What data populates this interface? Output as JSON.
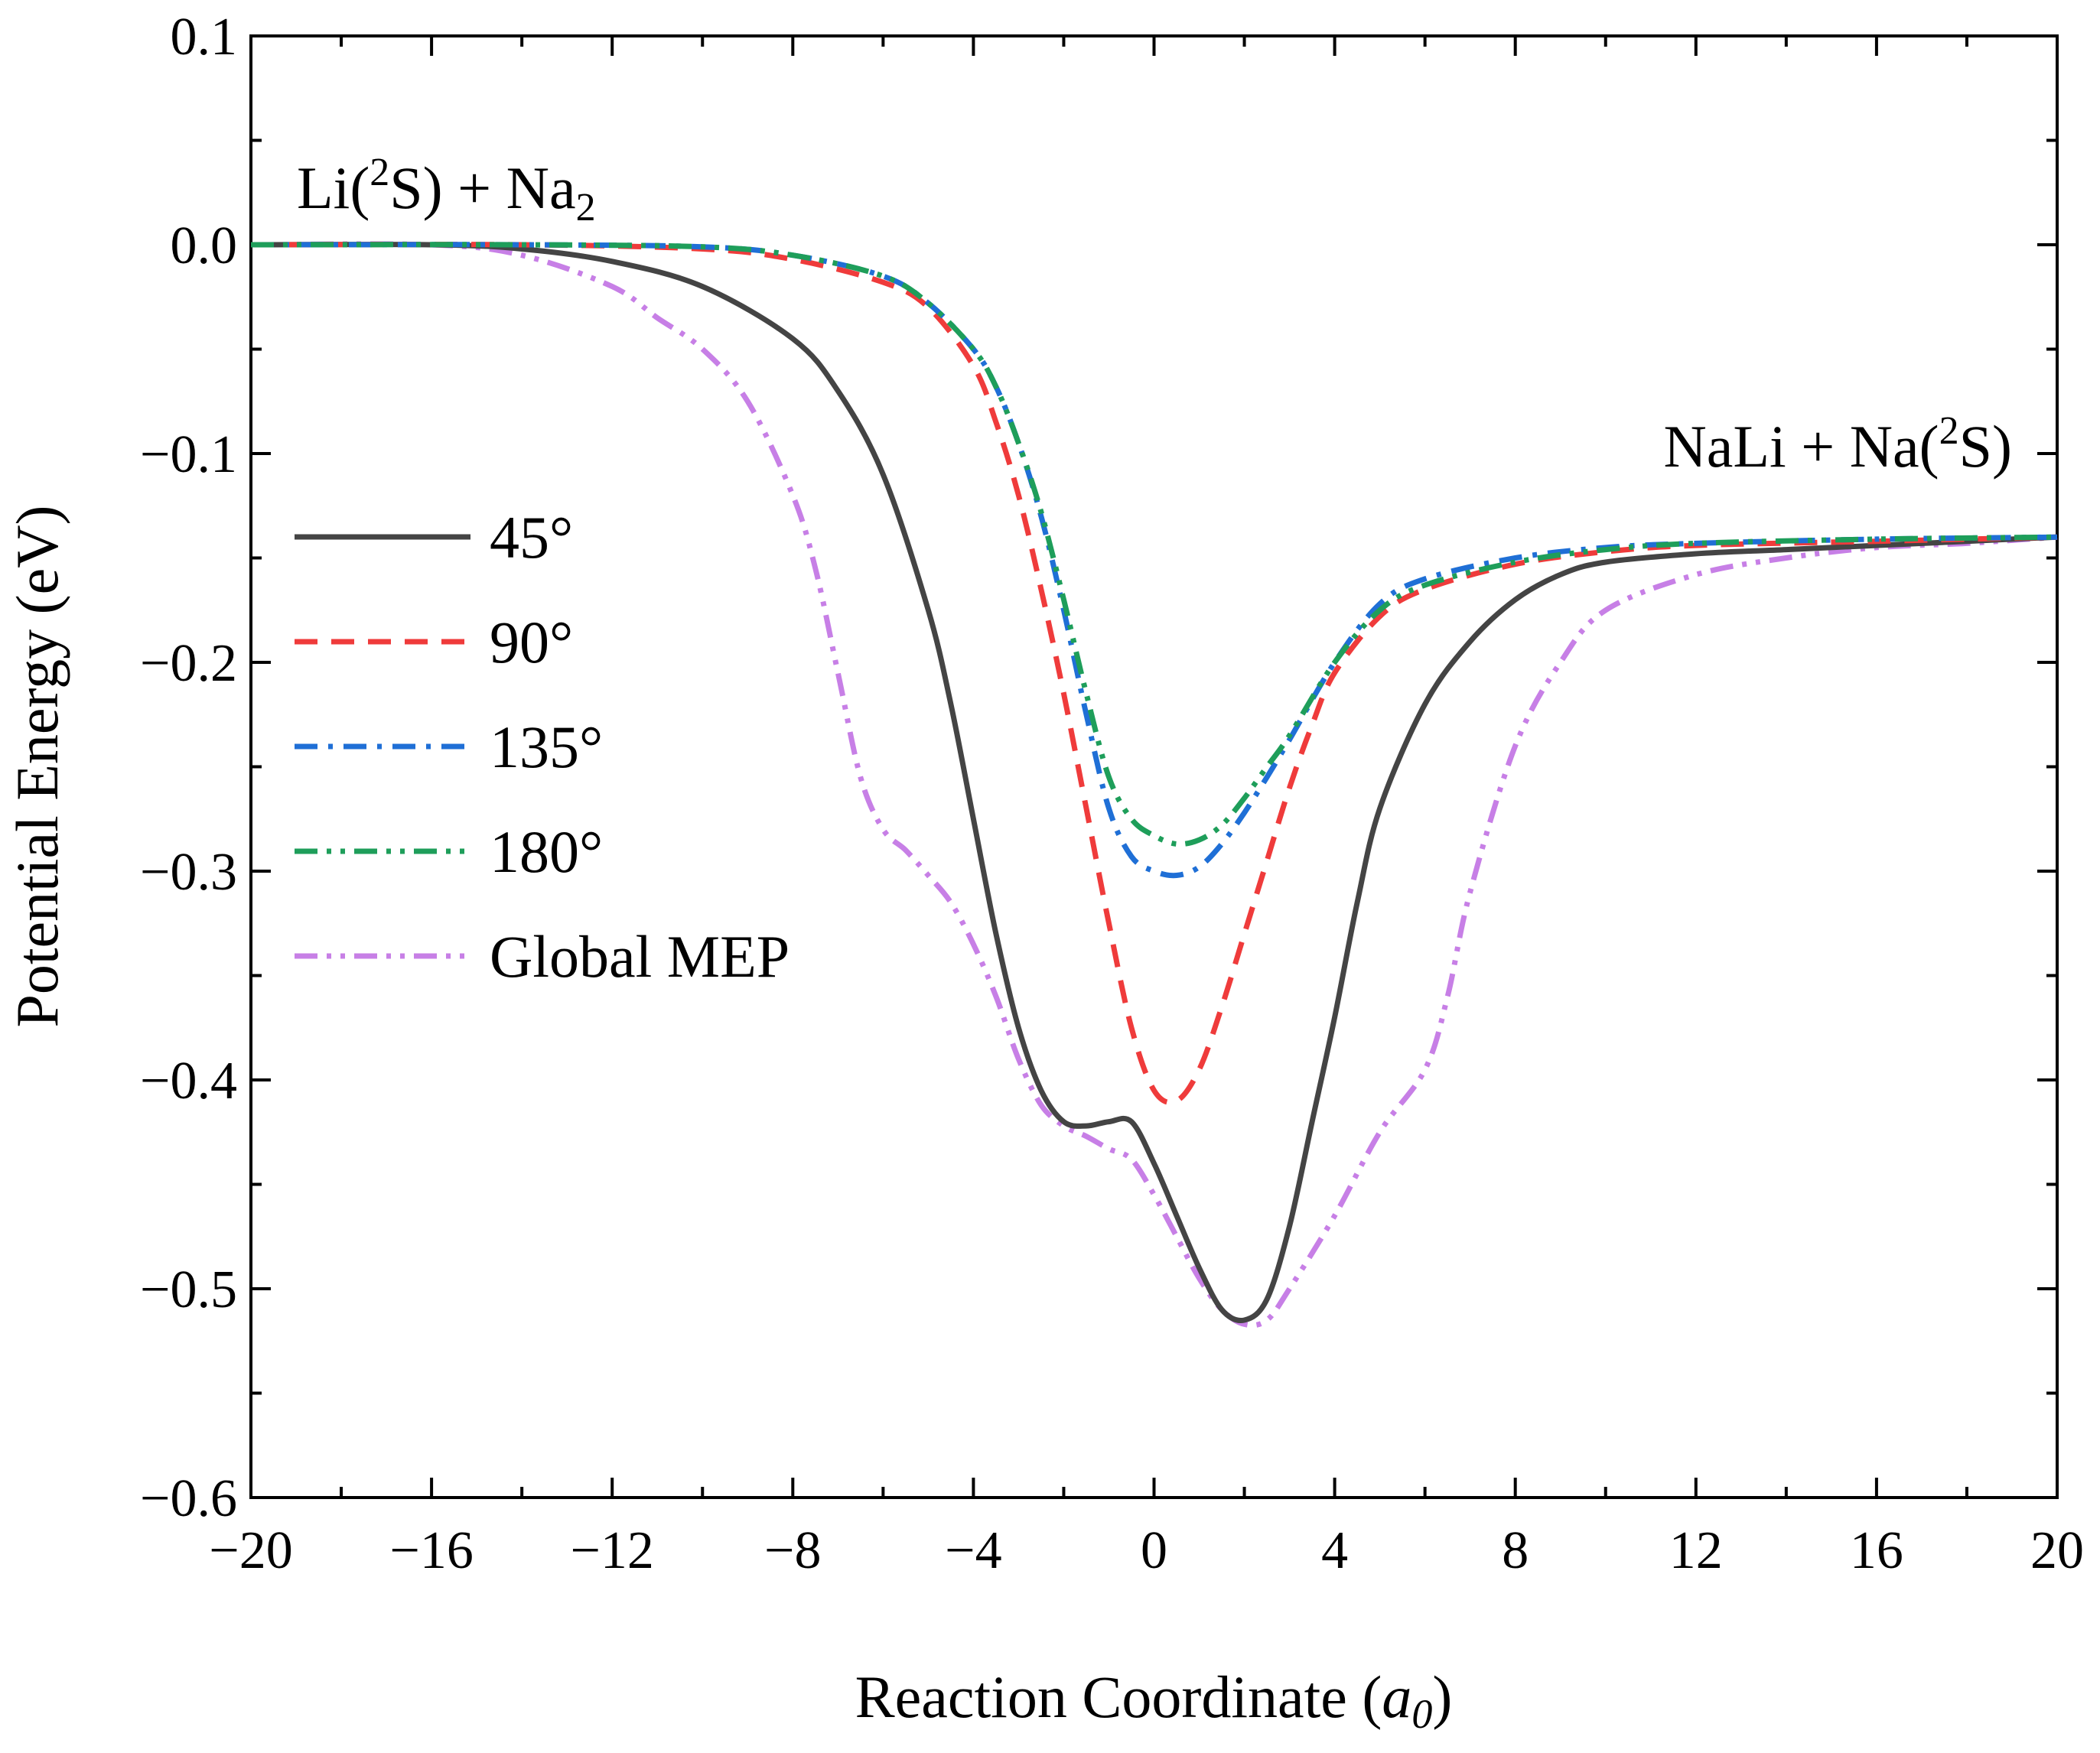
{
  "chart_data": {
    "type": "line",
    "xlabel": "Reaction Coordinate",
    "xlabel_unit": "a",
    "xlabel_unit_sub": "0",
    "ylabel": "Potential Energy (eV)",
    "xlim": [
      -20,
      20
    ],
    "ylim": [
      -0.6,
      0.1
    ],
    "grid": false,
    "legend_position": "left-middle",
    "x_ticks": [
      -20,
      -16,
      -12,
      -8,
      -4,
      0,
      4,
      8,
      12,
      16,
      20
    ],
    "x_tick_labels": [
      "−20",
      "−16",
      "−12",
      "−8",
      "−4",
      "0",
      "4",
      "8",
      "12",
      "16",
      "20"
    ],
    "y_ticks": [
      0.1,
      0.0,
      -0.1,
      -0.2,
      -0.3,
      -0.4,
      -0.5,
      -0.6
    ],
    "y_tick_labels": [
      "0.1",
      "0.0",
      "−0.1",
      "−0.2",
      "−0.3",
      "−0.4",
      "−0.5",
      "−0.6"
    ],
    "annotations": {
      "reactants": {
        "pre": "Li(",
        "sup": "2",
        "mid": "S) + Na",
        "sub": "2"
      },
      "products": {
        "pre": "NaLi + Na(",
        "sup": "2",
        "post": "S)"
      }
    },
    "series": [
      {
        "name": "45°",
        "color": "#444444",
        "dash": "solid",
        "x": [
          -20,
          -16,
          -14,
          -12,
          -10,
          -8,
          -7,
          -6,
          -5,
          -4.5,
          -4,
          -3.5,
          -3,
          -2.5,
          -2,
          -1.5,
          -1,
          -0.5,
          0,
          0.5,
          1,
          1.5,
          2,
          2.5,
          3,
          3.5,
          4,
          4.5,
          5,
          6,
          7,
          8,
          9,
          10,
          12,
          14,
          16,
          18,
          20
        ],
        "y": [
          0,
          0,
          -0.002,
          -0.008,
          -0.02,
          -0.045,
          -0.07,
          -0.11,
          -0.175,
          -0.22,
          -0.275,
          -0.33,
          -0.375,
          -0.405,
          -0.42,
          -0.422,
          -0.42,
          -0.42,
          -0.44,
          -0.465,
          -0.49,
          -0.51,
          -0.515,
          -0.505,
          -0.47,
          -0.42,
          -0.37,
          -0.315,
          -0.27,
          -0.22,
          -0.19,
          -0.17,
          -0.158,
          -0.152,
          -0.148,
          -0.146,
          -0.144,
          -0.142,
          -0.14
        ]
      },
      {
        "name": "90°",
        "color": "#ef3b3b",
        "dash": "dashed",
        "x": [
          -20,
          -14,
          -10,
          -8,
          -6,
          -5,
          -4,
          -3.5,
          -3,
          -2.5,
          -2,
          -1.5,
          -1,
          -0.5,
          0,
          0.5,
          1,
          1.5,
          2,
          2.5,
          3,
          3.5,
          4,
          5,
          6,
          8,
          10,
          12,
          16,
          20
        ],
        "y": [
          0,
          0,
          -0.002,
          -0.007,
          -0.018,
          -0.03,
          -0.058,
          -0.085,
          -0.12,
          -0.165,
          -0.215,
          -0.27,
          -0.325,
          -0.375,
          -0.405,
          -0.41,
          -0.395,
          -0.365,
          -0.33,
          -0.295,
          -0.26,
          -0.23,
          -0.205,
          -0.178,
          -0.165,
          -0.153,
          -0.147,
          -0.144,
          -0.142,
          -0.14
        ]
      },
      {
        "name": "135°",
        "color": "#1f6fd6",
        "dash": "dashdot",
        "x": [
          -20,
          -14,
          -10,
          -8,
          -6,
          -5,
          -4,
          -3.5,
          -3,
          -2.5,
          -2,
          -1.5,
          -1,
          -0.5,
          0,
          0.5,
          1,
          1.5,
          2,
          2.5,
          3,
          4,
          5,
          6,
          8,
          10,
          12,
          16,
          20
        ],
        "y": [
          0,
          0,
          -0.001,
          -0.005,
          -0.015,
          -0.028,
          -0.05,
          -0.068,
          -0.095,
          -0.13,
          -0.175,
          -0.225,
          -0.27,
          -0.293,
          -0.3,
          -0.302,
          -0.298,
          -0.287,
          -0.272,
          -0.255,
          -0.237,
          -0.2,
          -0.172,
          -0.16,
          -0.15,
          -0.145,
          -0.143,
          -0.141,
          -0.14
        ]
      },
      {
        "name": "180°",
        "color": "#1e9e5a",
        "dash": "dashdotdot",
        "x": [
          -20,
          -14,
          -10,
          -8,
          -6,
          -5,
          -4,
          -3.5,
          -3,
          -2.5,
          -2,
          -1.5,
          -1,
          -0.5,
          0,
          0.5,
          1,
          1.5,
          2,
          2.5,
          3,
          4,
          5,
          6,
          8,
          10,
          12,
          16,
          20
        ],
        "y": [
          0,
          0,
          -0.001,
          -0.005,
          -0.015,
          -0.028,
          -0.05,
          -0.068,
          -0.095,
          -0.128,
          -0.17,
          -0.215,
          -0.255,
          -0.275,
          -0.283,
          -0.287,
          -0.285,
          -0.278,
          -0.265,
          -0.25,
          -0.235,
          -0.2,
          -0.175,
          -0.163,
          -0.152,
          -0.146,
          -0.143,
          -0.141,
          -0.14
        ]
      },
      {
        "name": "Global MEP",
        "color": "#c77fe6",
        "dash": "dashdotdot",
        "x": [
          -20,
          -16,
          -14,
          -12,
          -11,
          -10,
          -9,
          -8,
          -7.5,
          -7,
          -6.5,
          -6,
          -5.5,
          -5,
          -4.5,
          -4,
          -3.5,
          -3,
          -2.5,
          -2,
          -1.5,
          -1,
          -0.5,
          0,
          0.5,
          1,
          1.5,
          2,
          2.5,
          3,
          4,
          5,
          6,
          6.5,
          7,
          8,
          9,
          10,
          12,
          14,
          16,
          18,
          20
        ],
        "y": [
          0,
          0,
          -0.005,
          -0.02,
          -0.035,
          -0.05,
          -0.075,
          -0.12,
          -0.155,
          -0.205,
          -0.255,
          -0.28,
          -0.29,
          -0.302,
          -0.315,
          -0.335,
          -0.36,
          -0.39,
          -0.412,
          -0.422,
          -0.427,
          -0.433,
          -0.438,
          -0.455,
          -0.475,
          -0.495,
          -0.51,
          -0.517,
          -0.515,
          -0.5,
          -0.465,
          -0.425,
          -0.395,
          -0.36,
          -0.31,
          -0.24,
          -0.2,
          -0.175,
          -0.158,
          -0.15,
          -0.145,
          -0.143,
          -0.14
        ]
      }
    ]
  }
}
